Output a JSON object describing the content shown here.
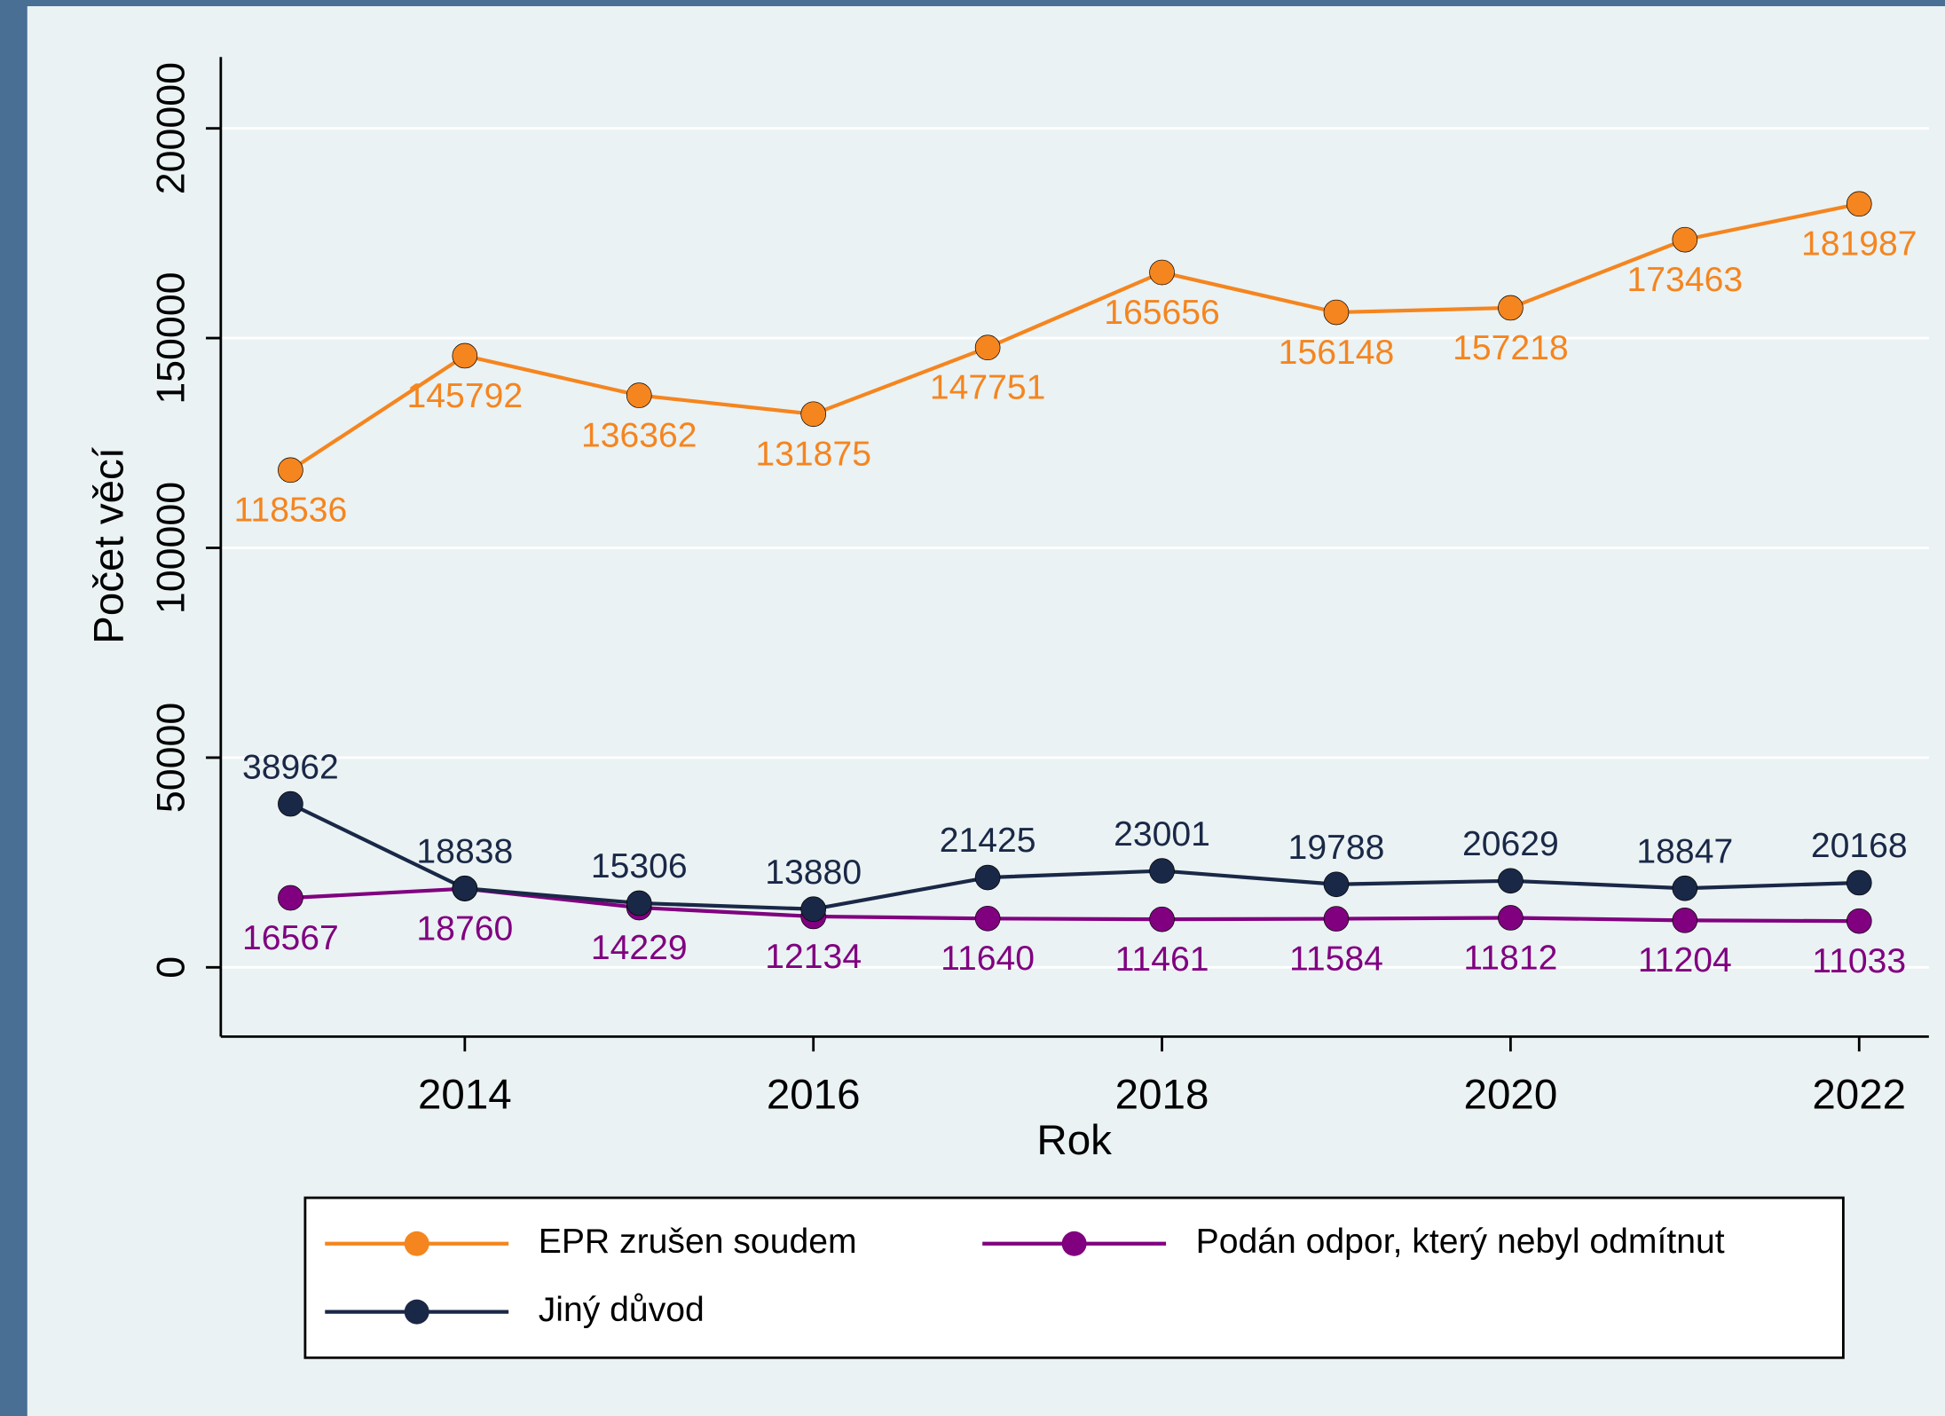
{
  "chart_data": {
    "type": "line",
    "x_label": "Rok",
    "y_label": "Počet věcí",
    "x": [
      2013,
      2014,
      2015,
      2016,
      2017,
      2018,
      2019,
      2020,
      2021,
      2022
    ],
    "xlim": [
      2012.6,
      2022.4
    ],
    "xticks": [
      2014,
      2016,
      2018,
      2020,
      2022
    ],
    "ylim": [
      -16500,
      217000
    ],
    "yticks": [
      0,
      50000,
      100000,
      150000,
      200000
    ],
    "grid": true,
    "legend": "bottom",
    "series": [
      {
        "name": "EPR zrušen soudem",
        "color": "#f5851f",
        "values": [
          118536,
          145792,
          136362,
          131875,
          147751,
          165656,
          156148,
          157218,
          173463,
          181987
        ]
      },
      {
        "name": "Podán odpor, který nebyl odmítnut",
        "color": "#800080",
        "values": [
          16567,
          18760,
          14229,
          12134,
          11640,
          11461,
          11584,
          11812,
          11204,
          11033
        ]
      },
      {
        "name": "Jiný důvod",
        "color": "#1a2847",
        "values": [
          38962,
          18838,
          15306,
          13880,
          21425,
          23001,
          19788,
          20629,
          18847,
          20168
        ]
      }
    ]
  }
}
